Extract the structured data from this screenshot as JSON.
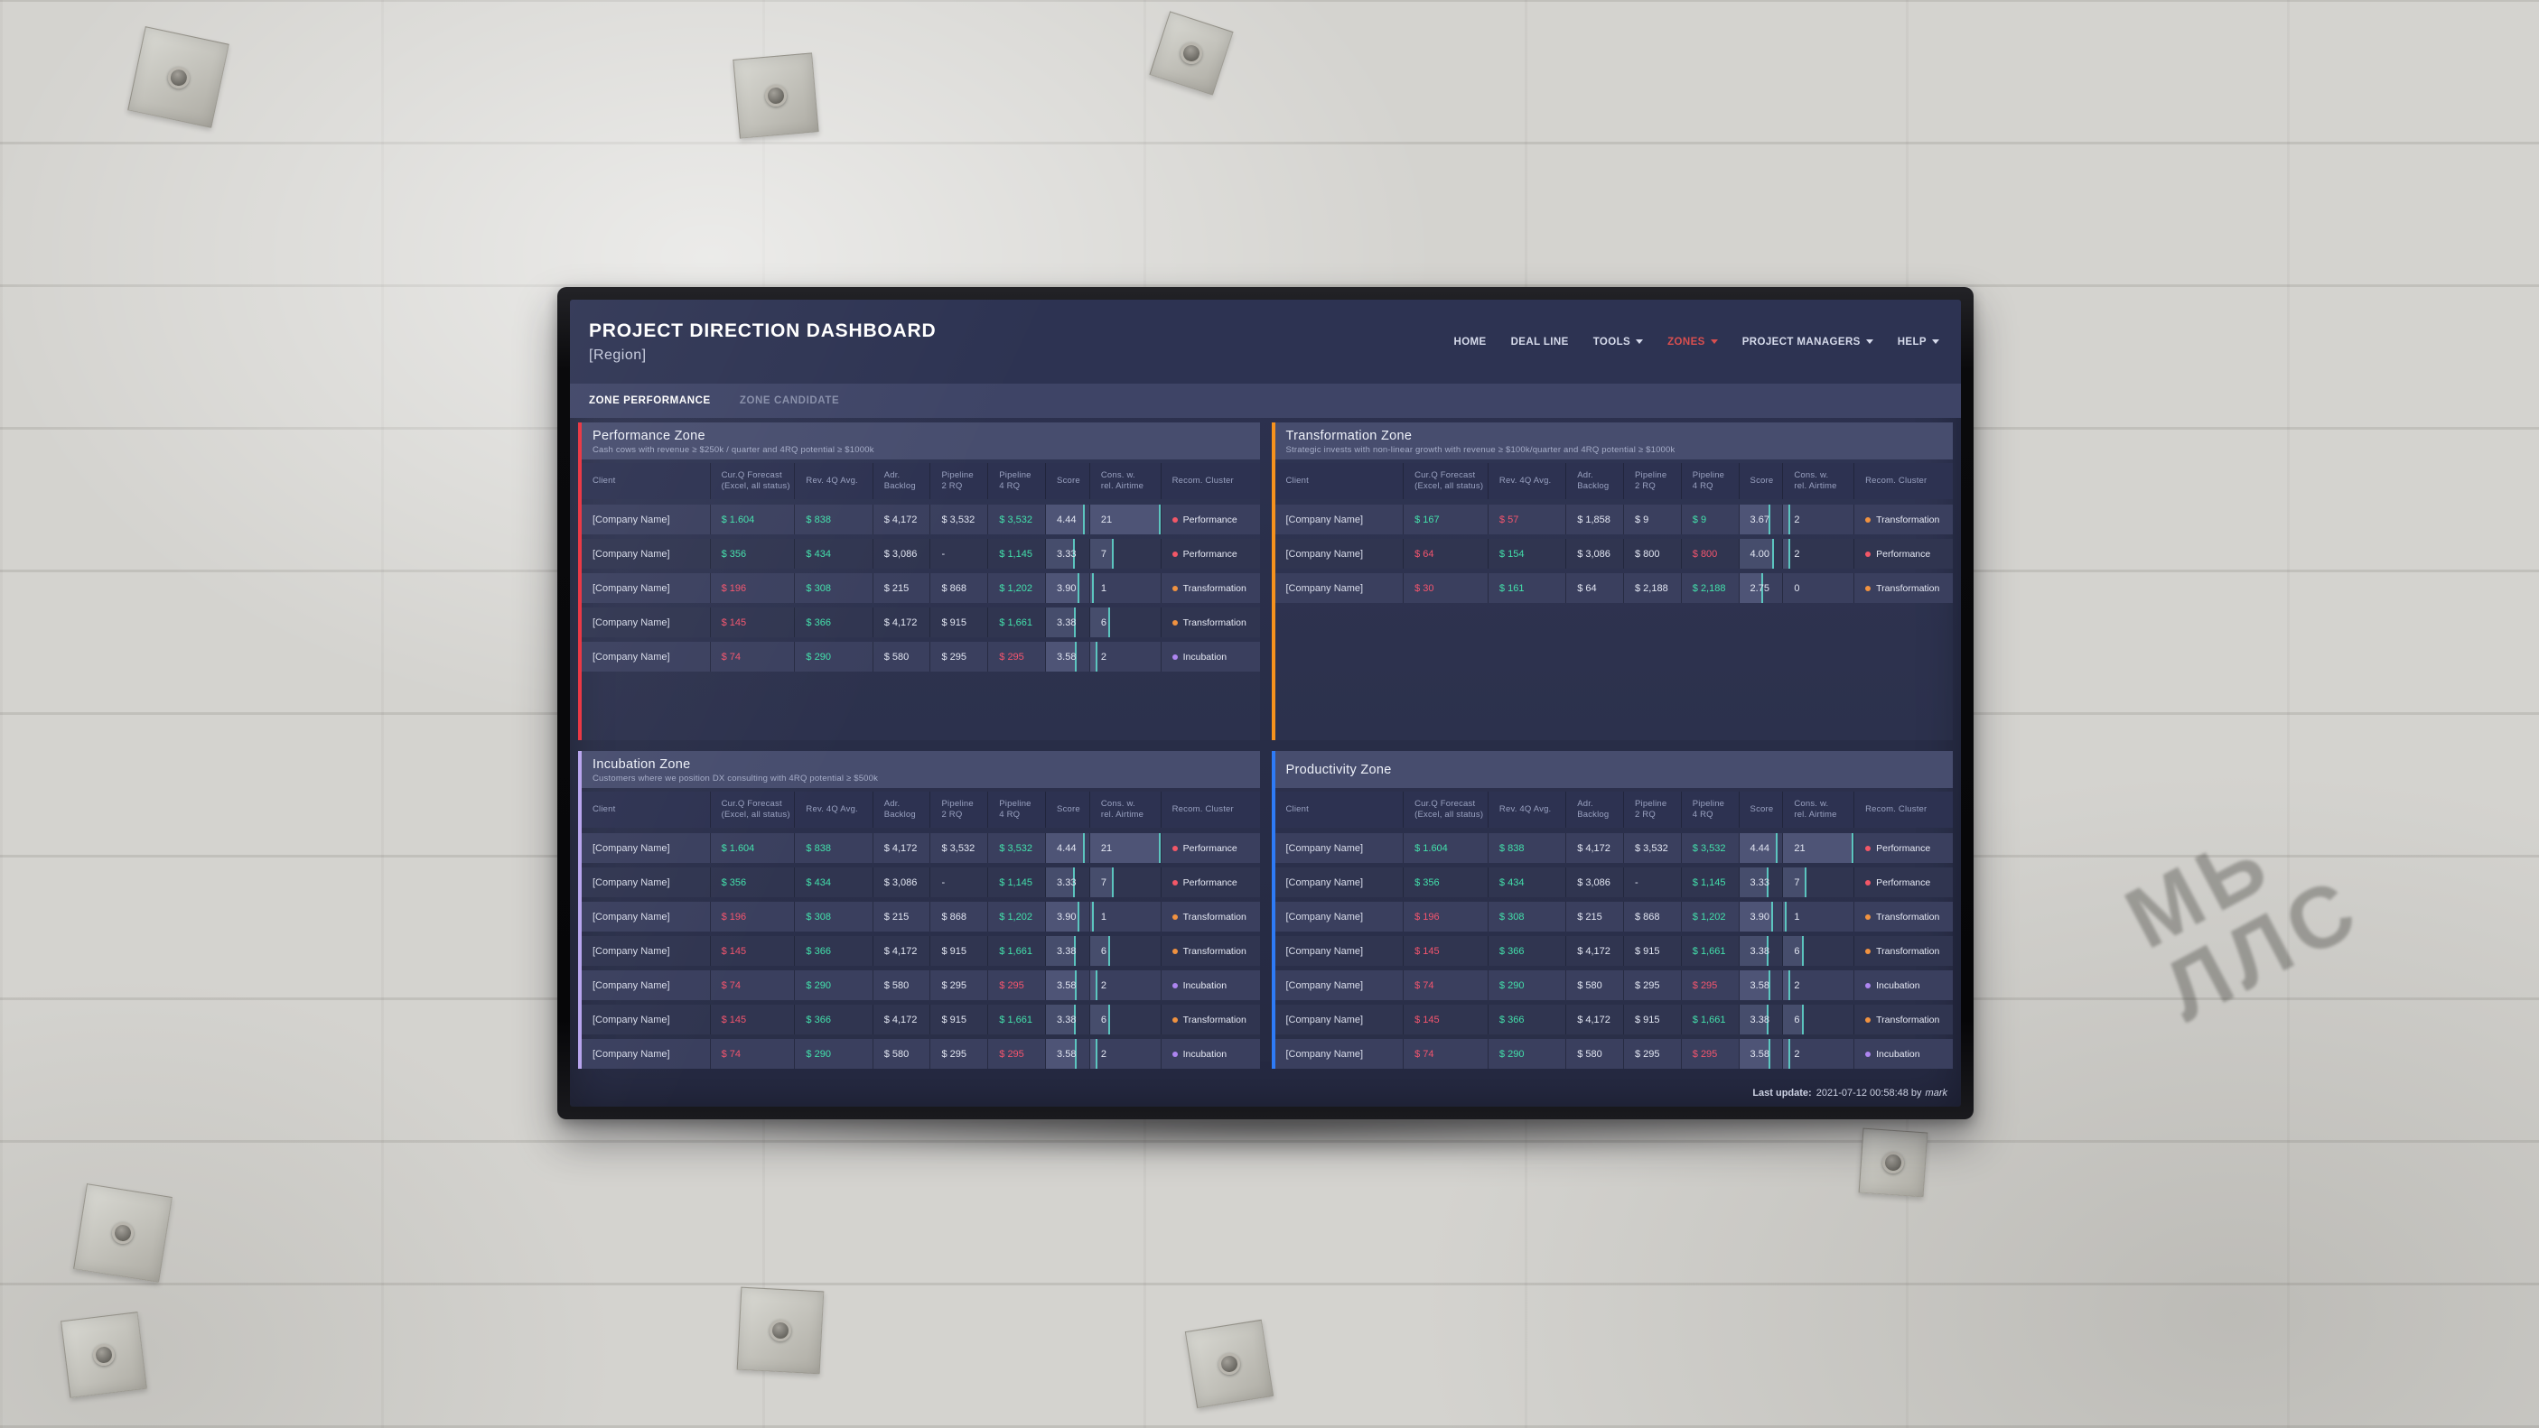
{
  "header": {
    "title": "PROJECT DIRECTION DASHBOARD",
    "subtitle": "[Region]",
    "nav_active_color": "#d94f4f",
    "nav": [
      {
        "label": "HOME",
        "dropdown": false,
        "active": false
      },
      {
        "label": "DEAL LINE",
        "dropdown": false,
        "active": false
      },
      {
        "label": "TOOLS",
        "dropdown": true,
        "active": false
      },
      {
        "label": "ZONES",
        "dropdown": true,
        "active": true
      },
      {
        "label": "PROJECT MANAGERS",
        "dropdown": true,
        "active": false
      },
      {
        "label": "HELP",
        "dropdown": true,
        "active": false
      }
    ]
  },
  "tabs": [
    {
      "label": "ZONE PERFORMANCE",
      "active": true
    },
    {
      "label": "ZONE CANDIDATE",
      "active": false
    }
  ],
  "table": {
    "columns": [
      "Client",
      "Cur.Q Forecast\n(Excel, all status)",
      "Rev. 4Q Avg.",
      "Adr.\nBacklog",
      "Pipeline\n2 RQ",
      "Pipeline\n4 RQ",
      "Score",
      "Cons. w.\nrel. Airtime",
      "Recom. Cluster"
    ]
  },
  "value_colors": {
    "pos": "#43e0ab",
    "neg": "#f4556e",
    "neutral": "#e2e6f2"
  },
  "cluster_colors": {
    "Performance": "#f25767",
    "Transformation": "#f09240",
    "Incubation": "#ad85f0"
  },
  "zones": [
    {
      "name": "Performance Zone",
      "subtitle": "Cash cows with revenue ≥ $250k / quarter and 4RQ potential ≥ $1000k",
      "accent": "#e9323f",
      "rows": [
        {
          "client": "[Company Name]",
          "forecast": {
            "v": "$ 1.604",
            "c": "pos"
          },
          "rev": {
            "v": "$ 838",
            "c": "pos"
          },
          "backlog": "$ 4,172",
          "pipe2": "$ 3,532",
          "pipe4": {
            "v": "$ 3,532",
            "c": "pos"
          },
          "score": "4.44",
          "score_pct": 89,
          "airtime": "21",
          "airtime_pct": 100,
          "cluster": "Performance"
        },
        {
          "client": "[Company Name]",
          "forecast": {
            "v": "$ 356",
            "c": "pos"
          },
          "rev": {
            "v": "$ 434",
            "c": "pos"
          },
          "backlog": "$ 3,086",
          "pipe2": "-",
          "pipe4": {
            "v": "$ 1,145",
            "c": "pos"
          },
          "score": "3.33",
          "score_pct": 67,
          "airtime": "7",
          "airtime_pct": 33,
          "cluster": "Performance"
        },
        {
          "client": "[Company Name]",
          "forecast": {
            "v": "$ 196",
            "c": "neg"
          },
          "rev": {
            "v": "$ 308",
            "c": "pos"
          },
          "backlog": "$ 215",
          "pipe2": "$ 868",
          "pipe4": {
            "v": "$ 1,202",
            "c": "pos"
          },
          "score": "3.90",
          "score_pct": 78,
          "airtime": "1",
          "airtime_pct": 5,
          "cluster": "Transformation"
        },
        {
          "client": "[Company Name]",
          "forecast": {
            "v": "$ 145",
            "c": "neg"
          },
          "rev": {
            "v": "$ 366",
            "c": "pos"
          },
          "backlog": "$ 4,172",
          "pipe2": "$ 915",
          "pipe4": {
            "v": "$ 1,661",
            "c": "pos"
          },
          "score": "3.38",
          "score_pct": 68,
          "airtime": "6",
          "airtime_pct": 29,
          "cluster": "Transformation"
        },
        {
          "client": "[Company Name]",
          "forecast": {
            "v": "$ 74",
            "c": "neg"
          },
          "rev": {
            "v": "$ 290",
            "c": "pos"
          },
          "backlog": "$ 580",
          "pipe2": "$ 295",
          "pipe4": {
            "v": "$ 295",
            "c": "neg"
          },
          "score": "3.58",
          "score_pct": 72,
          "airtime": "2",
          "airtime_pct": 10,
          "cluster": "Incubation"
        }
      ]
    },
    {
      "name": "Transformation Zone",
      "subtitle": "Strategic invests with non-linear growth with revenue ≥ $100k/quarter and 4RQ potential ≥ $1000k",
      "accent": "#f6921d",
      "rows": [
        {
          "client": "[Company Name]",
          "forecast": {
            "v": "$ 167",
            "c": "pos"
          },
          "rev": {
            "v": "$ 57",
            "c": "neg"
          },
          "backlog": "$ 1,858",
          "pipe2": "$ 9",
          "pipe4": {
            "v": "$ 9",
            "c": "pos"
          },
          "score": "3.67",
          "score_pct": 73,
          "airtime": "2",
          "airtime_pct": 10,
          "cluster": "Transformation"
        },
        {
          "client": "[Company Name]",
          "forecast": {
            "v": "$ 64",
            "c": "neg"
          },
          "rev": {
            "v": "$ 154",
            "c": "pos"
          },
          "backlog": "$ 3,086",
          "pipe2": "$ 800",
          "pipe4": {
            "v": "$ 800",
            "c": "neg"
          },
          "score": "4.00",
          "score_pct": 80,
          "airtime": "2",
          "airtime_pct": 10,
          "cluster": "Performance"
        },
        {
          "client": "[Company Name]",
          "forecast": {
            "v": "$ 30",
            "c": "neg"
          },
          "rev": {
            "v": "$ 161",
            "c": "pos"
          },
          "backlog": "$ 64",
          "pipe2": "$ 2,188",
          "pipe4": {
            "v": "$ 2,188",
            "c": "pos"
          },
          "score": "2.75",
          "score_pct": 55,
          "airtime": "0",
          "airtime_pct": 0,
          "cluster": "Transformation"
        }
      ]
    },
    {
      "name": "Incubation Zone",
      "subtitle": "Customers where we position DX consulting with 4RQ potential ≥ $500k",
      "accent": "#b7a4ee",
      "rows": [
        {
          "client": "[Company Name]",
          "forecast": {
            "v": "$ 1.604",
            "c": "pos"
          },
          "rev": {
            "v": "$ 838",
            "c": "pos"
          },
          "backlog": "$ 4,172",
          "pipe2": "$ 3,532",
          "pipe4": {
            "v": "$ 3,532",
            "c": "pos"
          },
          "score": "4.44",
          "score_pct": 89,
          "airtime": "21",
          "airtime_pct": 100,
          "cluster": "Performance"
        },
        {
          "client": "[Company Name]",
          "forecast": {
            "v": "$ 356",
            "c": "pos"
          },
          "rev": {
            "v": "$ 434",
            "c": "pos"
          },
          "backlog": "$ 3,086",
          "pipe2": "-",
          "pipe4": {
            "v": "$ 1,145",
            "c": "pos"
          },
          "score": "3.33",
          "score_pct": 67,
          "airtime": "7",
          "airtime_pct": 33,
          "cluster": "Performance"
        },
        {
          "client": "[Company Name]",
          "forecast": {
            "v": "$ 196",
            "c": "neg"
          },
          "rev": {
            "v": "$ 308",
            "c": "pos"
          },
          "backlog": "$ 215",
          "pipe2": "$ 868",
          "pipe4": {
            "v": "$ 1,202",
            "c": "pos"
          },
          "score": "3.90",
          "score_pct": 78,
          "airtime": "1",
          "airtime_pct": 5,
          "cluster": "Transformation"
        },
        {
          "client": "[Company Name]",
          "forecast": {
            "v": "$ 145",
            "c": "neg"
          },
          "rev": {
            "v": "$ 366",
            "c": "pos"
          },
          "backlog": "$ 4,172",
          "pipe2": "$ 915",
          "pipe4": {
            "v": "$ 1,661",
            "c": "pos"
          },
          "score": "3.38",
          "score_pct": 68,
          "airtime": "6",
          "airtime_pct": 29,
          "cluster": "Transformation"
        },
        {
          "client": "[Company Name]",
          "forecast": {
            "v": "$ 74",
            "c": "neg"
          },
          "rev": {
            "v": "$ 290",
            "c": "pos"
          },
          "backlog": "$ 580",
          "pipe2": "$ 295",
          "pipe4": {
            "v": "$ 295",
            "c": "neg"
          },
          "score": "3.58",
          "score_pct": 72,
          "airtime": "2",
          "airtime_pct": 10,
          "cluster": "Incubation"
        },
        {
          "client": "[Company Name]",
          "forecast": {
            "v": "$ 145",
            "c": "neg"
          },
          "rev": {
            "v": "$ 366",
            "c": "pos"
          },
          "backlog": "$ 4,172",
          "pipe2": "$ 915",
          "pipe4": {
            "v": "$ 1,661",
            "c": "pos"
          },
          "score": "3.38",
          "score_pct": 68,
          "airtime": "6",
          "airtime_pct": 29,
          "cluster": "Transformation"
        },
        {
          "client": "[Company Name]",
          "forecast": {
            "v": "$ 74",
            "c": "neg"
          },
          "rev": {
            "v": "$ 290",
            "c": "pos"
          },
          "backlog": "$ 580",
          "pipe2": "$ 295",
          "pipe4": {
            "v": "$ 295",
            "c": "neg"
          },
          "score": "3.58",
          "score_pct": 72,
          "airtime": "2",
          "airtime_pct": 10,
          "cluster": "Incubation"
        }
      ]
    },
    {
      "name": "Productivity Zone",
      "subtitle": "",
      "accent": "#2e7bf6",
      "rows": [
        {
          "client": "[Company Name]",
          "forecast": {
            "v": "$ 1.604",
            "c": "pos"
          },
          "rev": {
            "v": "$ 838",
            "c": "pos"
          },
          "backlog": "$ 4,172",
          "pipe2": "$ 3,532",
          "pipe4": {
            "v": "$ 3,532",
            "c": "pos"
          },
          "score": "4.44",
          "score_pct": 89,
          "airtime": "21",
          "airtime_pct": 100,
          "cluster": "Performance"
        },
        {
          "client": "[Company Name]",
          "forecast": {
            "v": "$ 356",
            "c": "pos"
          },
          "rev": {
            "v": "$ 434",
            "c": "pos"
          },
          "backlog": "$ 3,086",
          "pipe2": "-",
          "pipe4": {
            "v": "$ 1,145",
            "c": "pos"
          },
          "score": "3.33",
          "score_pct": 67,
          "airtime": "7",
          "airtime_pct": 33,
          "cluster": "Performance"
        },
        {
          "client": "[Company Name]",
          "forecast": {
            "v": "$ 196",
            "c": "neg"
          },
          "rev": {
            "v": "$ 308",
            "c": "pos"
          },
          "backlog": "$ 215",
          "pipe2": "$ 868",
          "pipe4": {
            "v": "$ 1,202",
            "c": "pos"
          },
          "score": "3.90",
          "score_pct": 78,
          "airtime": "1",
          "airtime_pct": 5,
          "cluster": "Transformation"
        },
        {
          "client": "[Company Name]",
          "forecast": {
            "v": "$ 145",
            "c": "neg"
          },
          "rev": {
            "v": "$ 366",
            "c": "pos"
          },
          "backlog": "$ 4,172",
          "pipe2": "$ 915",
          "pipe4": {
            "v": "$ 1,661",
            "c": "pos"
          },
          "score": "3.38",
          "score_pct": 68,
          "airtime": "6",
          "airtime_pct": 29,
          "cluster": "Transformation"
        },
        {
          "client": "[Company Name]",
          "forecast": {
            "v": "$ 74",
            "c": "neg"
          },
          "rev": {
            "v": "$ 290",
            "c": "pos"
          },
          "backlog": "$ 580",
          "pipe2": "$ 295",
          "pipe4": {
            "v": "$ 295",
            "c": "neg"
          },
          "score": "3.58",
          "score_pct": 72,
          "airtime": "2",
          "airtime_pct": 10,
          "cluster": "Incubation"
        },
        {
          "client": "[Company Name]",
          "forecast": {
            "v": "$ 145",
            "c": "neg"
          },
          "rev": {
            "v": "$ 366",
            "c": "pos"
          },
          "backlog": "$ 4,172",
          "pipe2": "$ 915",
          "pipe4": {
            "v": "$ 1,661",
            "c": "pos"
          },
          "score": "3.38",
          "score_pct": 68,
          "airtime": "6",
          "airtime_pct": 29,
          "cluster": "Transformation"
        },
        {
          "client": "[Company Name]",
          "forecast": {
            "v": "$ 74",
            "c": "neg"
          },
          "rev": {
            "v": "$ 290",
            "c": "pos"
          },
          "backlog": "$ 580",
          "pipe2": "$ 295",
          "pipe4": {
            "v": "$ 295",
            "c": "neg"
          },
          "score": "3.58",
          "score_pct": 72,
          "airtime": "2",
          "airtime_pct": 10,
          "cluster": "Incubation"
        }
      ]
    }
  ],
  "footer": {
    "label": "Last update:",
    "value": "2021-07-12 00:58:48 by",
    "user": "mark"
  },
  "wall": {
    "stencil_lines": "МЬ\nЛЛС"
  }
}
